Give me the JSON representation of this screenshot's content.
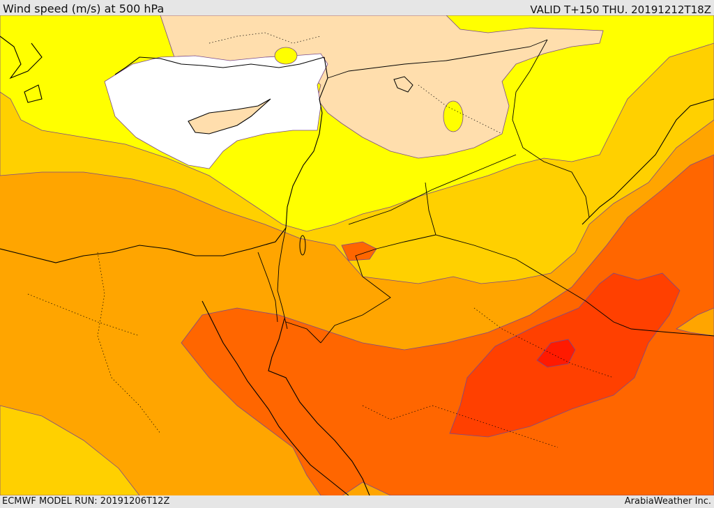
{
  "header": {
    "title": "Wind speed (m/s) at 500 hPa",
    "valid": "VALID T+150 THU. 20191212T18Z"
  },
  "footer": {
    "model_run": "ECMWF MODEL RUN: 20191206T12Z",
    "credit": "ArabiaWeather Inc."
  },
  "colors": {
    "band_0_5": "#ffffff",
    "band_5_10": "#ffdead",
    "band_10_15": "#ffff00",
    "band_15_20": "#ffd000",
    "band_20_25": "#ffa500",
    "band_25_30": "#ff6600",
    "band_30_35": "#ff4000",
    "band_35_40": "#ff1a00",
    "coastline": "#000000",
    "borders": "#000000",
    "contour": "#7a4a8a"
  }
}
